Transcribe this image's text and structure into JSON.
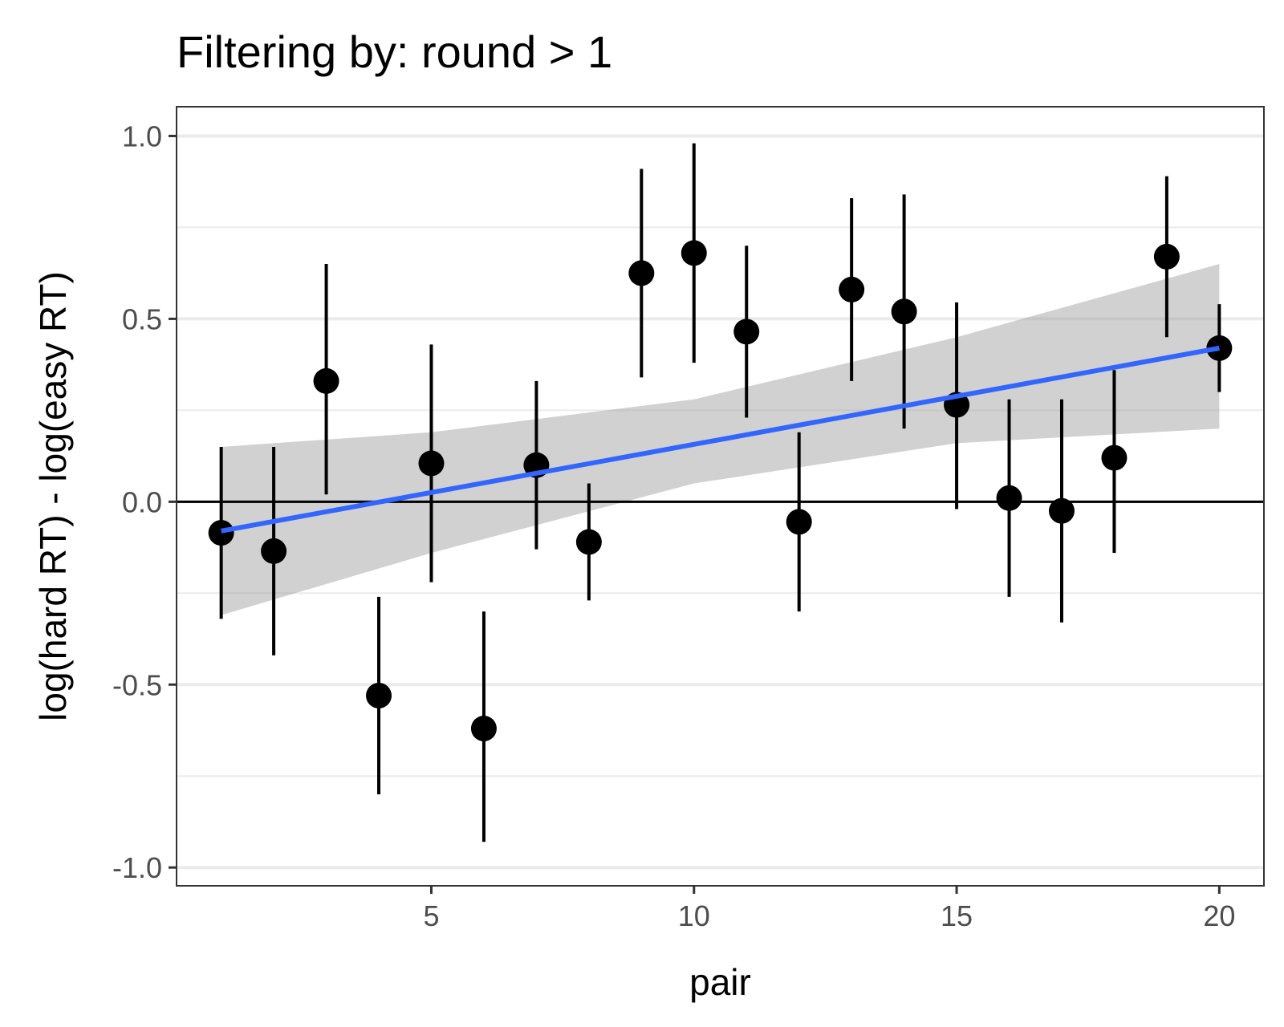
{
  "chart_data": {
    "type": "scatter",
    "title": "Filtering by: round > 1",
    "xlabel": "pair",
    "ylabel": "log(hard RT) - log(easy RT)",
    "xlim": [
      0.15,
      20.85
    ],
    "ylim": [
      -1.05,
      1.08
    ],
    "x_ticks": [
      5,
      10,
      15,
      20
    ],
    "x_tick_labels": [
      "5",
      "10",
      "15",
      "20"
    ],
    "y_ticks": [
      -1.0,
      -0.5,
      0.0,
      0.5,
      1.0
    ],
    "y_tick_labels": [
      "-1.0",
      "-0.5",
      "0.0",
      "0.5",
      "1.0"
    ],
    "y_minor_ticks": [
      -0.75,
      -0.25,
      0.25,
      0.75
    ],
    "grid": true,
    "reference_line_y": 0,
    "points": [
      {
        "x": 1,
        "y": -0.085,
        "lower": -0.32,
        "upper": 0.15
      },
      {
        "x": 2,
        "y": -0.135,
        "lower": -0.42,
        "upper": 0.15
      },
      {
        "x": 3,
        "y": 0.33,
        "lower": 0.02,
        "upper": 0.65
      },
      {
        "x": 4,
        "y": -0.53,
        "lower": -0.8,
        "upper": -0.26
      },
      {
        "x": 5,
        "y": 0.105,
        "lower": -0.22,
        "upper": 0.43
      },
      {
        "x": 6,
        "y": -0.62,
        "lower": -0.93,
        "upper": -0.3
      },
      {
        "x": 7,
        "y": 0.1,
        "lower": -0.13,
        "upper": 0.33
      },
      {
        "x": 8,
        "y": -0.11,
        "lower": -0.27,
        "upper": 0.05
      },
      {
        "x": 9,
        "y": 0.625,
        "lower": 0.34,
        "upper": 0.91
      },
      {
        "x": 10,
        "y": 0.68,
        "lower": 0.38,
        "upper": 0.98
      },
      {
        "x": 11,
        "y": 0.465,
        "lower": 0.23,
        "upper": 0.7
      },
      {
        "x": 12,
        "y": -0.055,
        "lower": -0.3,
        "upper": 0.19
      },
      {
        "x": 13,
        "y": 0.58,
        "lower": 0.33,
        "upper": 0.83
      },
      {
        "x": 14,
        "y": 0.52,
        "lower": 0.2,
        "upper": 0.84
      },
      {
        "x": 15,
        "y": 0.265,
        "lower": -0.02,
        "upper": 0.545
      },
      {
        "x": 16,
        "y": 0.01,
        "lower": -0.26,
        "upper": 0.28
      },
      {
        "x": 17,
        "y": -0.025,
        "lower": -0.33,
        "upper": 0.28
      },
      {
        "x": 18,
        "y": 0.12,
        "lower": -0.14,
        "upper": 0.36
      },
      {
        "x": 19,
        "y": 0.67,
        "lower": 0.45,
        "upper": 0.89
      },
      {
        "x": 20,
        "y": 0.42,
        "lower": 0.3,
        "upper": 0.54
      }
    ],
    "trend": {
      "method": "linear",
      "x": [
        1,
        20
      ],
      "y": [
        -0.08,
        0.42
      ],
      "ci_x": [
        1,
        5,
        10,
        15,
        20
      ],
      "ci_lower": [
        -0.31,
        -0.14,
        0.05,
        0.16,
        0.2
      ],
      "ci_upper": [
        0.15,
        0.19,
        0.28,
        0.45,
        0.65
      ]
    },
    "colors": {
      "points": "#000000",
      "trend_line": "#3366FF",
      "ci_band": "#999999",
      "grid_major": "#ebebeb",
      "grid_minor": "#ebebeb",
      "panel_border": "#333333",
      "tick_text": "#4d4d4d"
    }
  }
}
